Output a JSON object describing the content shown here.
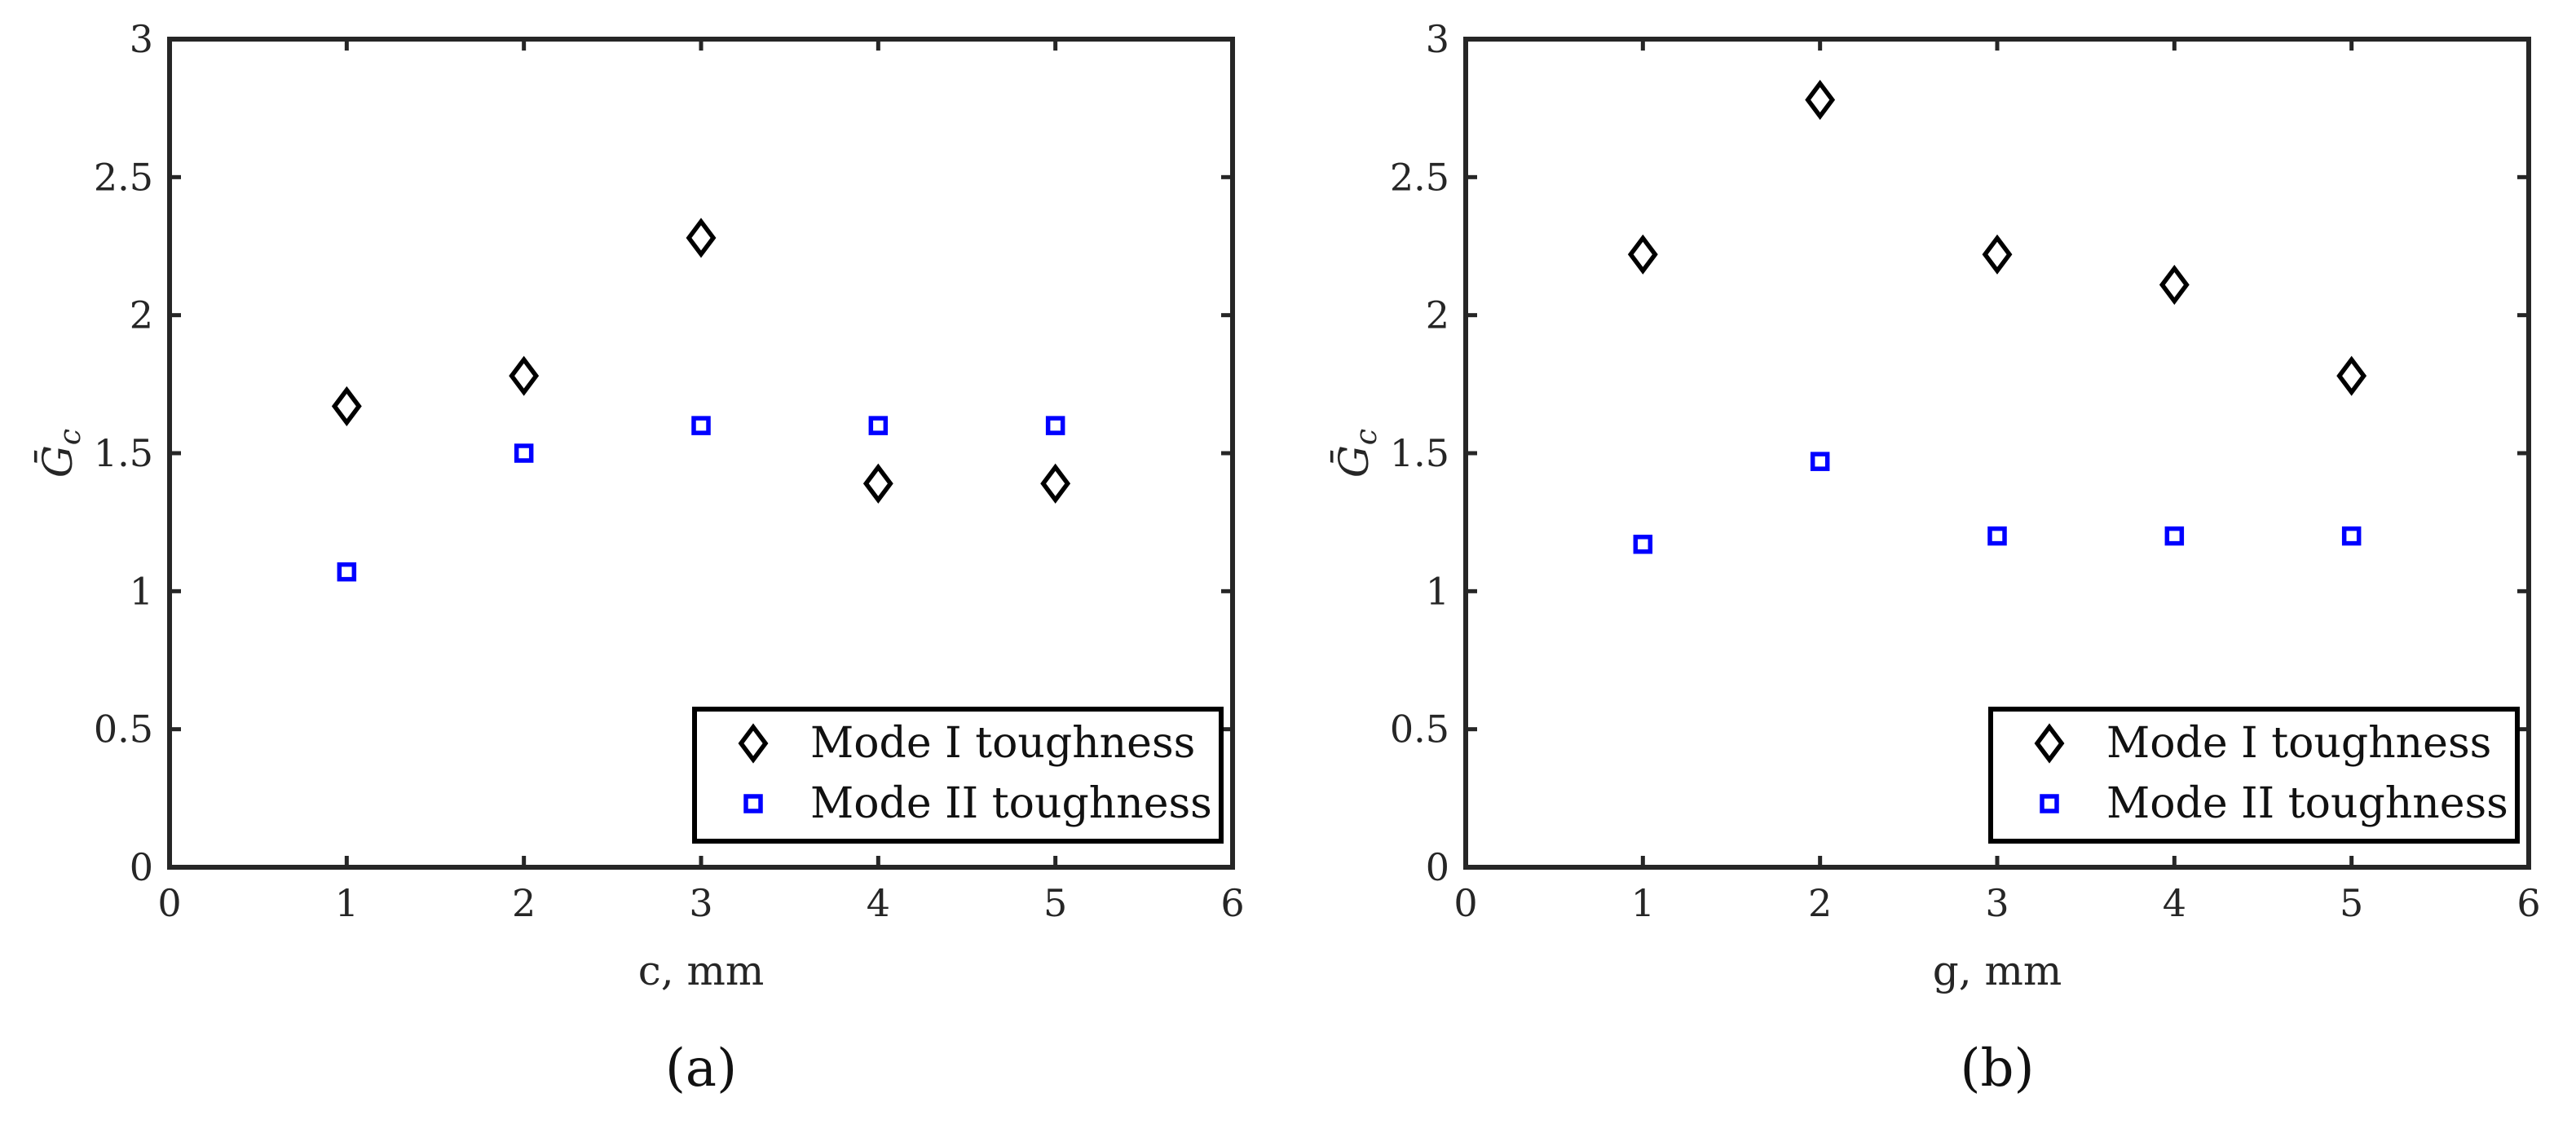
{
  "chart_data": [
    {
      "type": "scatter",
      "panel_label": "(a)",
      "xlabel": "c, mm",
      "ylabel": "Ḡ_c",
      "xlim": [
        0,
        6
      ],
      "ylim": [
        0,
        3
      ],
      "xticks": [
        0,
        1,
        2,
        3,
        4,
        5,
        6
      ],
      "yticks": [
        0,
        0.5,
        1,
        1.5,
        2,
        2.5,
        3
      ],
      "xtick_labels": [
        "0",
        "1",
        "2",
        "3",
        "4",
        "5",
        "6"
      ],
      "ytick_labels": [
        "0",
        "0.5",
        "1",
        "1.5",
        "2",
        "2.5",
        "3"
      ],
      "grid": false,
      "legend_position": "bottom-right",
      "series": [
        {
          "name": "Mode I toughness",
          "marker": "diamond",
          "color": "#000000",
          "x": [
            1,
            2,
            3,
            4,
            5
          ],
          "y": [
            1.67,
            1.78,
            2.28,
            1.39,
            1.39
          ]
        },
        {
          "name": "Mode II toughness",
          "marker": "square",
          "color": "#0000ff",
          "x": [
            1,
            2,
            3,
            4,
            5
          ],
          "y": [
            1.07,
            1.5,
            1.6,
            1.6,
            1.6
          ]
        }
      ]
    },
    {
      "type": "scatter",
      "panel_label": "(b)",
      "xlabel": "g, mm",
      "ylabel": "Ḡ_c",
      "xlim": [
        0,
        6
      ],
      "ylim": [
        0,
        3
      ],
      "xticks": [
        0,
        1,
        2,
        3,
        4,
        5,
        6
      ],
      "yticks": [
        0,
        0.5,
        1,
        1.5,
        2,
        2.5,
        3
      ],
      "xtick_labels": [
        "0",
        "1",
        "2",
        "3",
        "4",
        "5",
        "6"
      ],
      "ytick_labels": [
        "0",
        "0.5",
        "1",
        "1.5",
        "2",
        "2.5",
        "3"
      ],
      "grid": false,
      "legend_position": "bottom-right",
      "series": [
        {
          "name": "Mode I toughness",
          "marker": "diamond",
          "color": "#000000",
          "x": [
            1,
            2,
            3,
            4,
            5
          ],
          "y": [
            2.22,
            2.78,
            2.22,
            2.11,
            1.78
          ]
        },
        {
          "name": "Mode II toughness",
          "marker": "square",
          "color": "#0000ff",
          "x": [
            1,
            2,
            3,
            4,
            5
          ],
          "y": [
            1.17,
            1.47,
            1.2,
            1.2,
            1.2
          ]
        }
      ]
    }
  ]
}
